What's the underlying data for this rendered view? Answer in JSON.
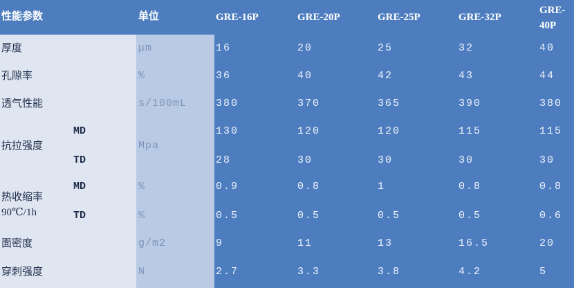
{
  "table": {
    "header": {
      "property": "性能参数",
      "unit": "单位",
      "models": [
        "GRE-16P",
        "GRE-20P",
        "GRE-25P",
        "GRE-32P",
        "GRE-40P"
      ]
    },
    "rows": [
      {
        "label": "厚度",
        "unit": "μm",
        "values": [
          16,
          20,
          25,
          32,
          40
        ]
      },
      {
        "label": "孔隙率",
        "unit": "%",
        "values": [
          36,
          40,
          42,
          43,
          44
        ]
      },
      {
        "label": "透气性能",
        "unit": "s/100mL",
        "values": [
          380,
          370,
          365,
          390,
          380
        ]
      },
      {
        "label": "抗拉强度",
        "unit": "Mpa",
        "sub": [
          {
            "name": "MD",
            "values": [
              130,
              120,
              120,
              115,
              115
            ]
          },
          {
            "name": "TD",
            "values": [
              28,
              30,
              30,
              30,
              30
            ]
          }
        ]
      },
      {
        "label": "热收缩率",
        "label2": "90℃/1h",
        "sub": [
          {
            "name": "MD",
            "unit": "%",
            "values": [
              0.9,
              0.8,
              1,
              0.8,
              0.8
            ]
          },
          {
            "name": "TD",
            "unit": "%",
            "values": [
              0.5,
              0.5,
              0.5,
              0.5,
              0.6
            ]
          }
        ]
      },
      {
        "label": "面密度",
        "unit": "g/m2",
        "values": [
          9,
          11,
          13,
          16.5,
          20
        ]
      },
      {
        "label": "穿刺强度",
        "unit": "N",
        "values": [
          2.7,
          3.3,
          3.8,
          4.2,
          5
        ]
      }
    ]
  }
}
